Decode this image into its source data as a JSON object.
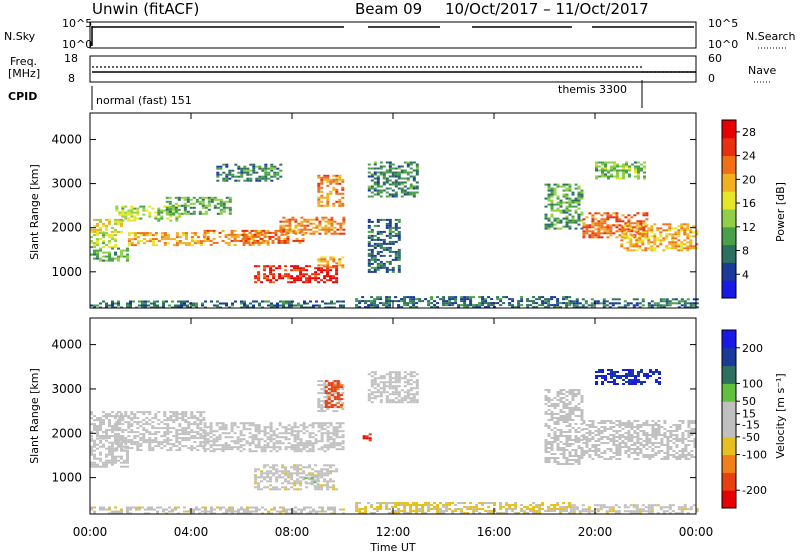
{
  "header": {
    "station": "Unwin  (fitACF)",
    "beam": "Beam 09",
    "date_range": "10/Oct/2017 – 11/Oct/2017"
  },
  "nsky_panel": {
    "left_label": "N.Sky",
    "right_label": "N.Search",
    "left_ticks": [
      "10^5",
      "10^0"
    ],
    "right_ticks": [
      "10^5",
      "10^0"
    ]
  },
  "freq_panel": {
    "left_label_line1": "Freq.",
    "left_label_line2": "[MHz]",
    "right_label": "Nave",
    "left_ticks": [
      "18",
      "8"
    ],
    "right_ticks": [
      "60",
      "0"
    ]
  },
  "cpid_panel": {
    "label": "CPID",
    "modes": [
      {
        "name": "normal (fast) 151",
        "start_hour": 0,
        "end_hour": 22.0
      },
      {
        "name": "themis 3300",
        "start_hour": 22.0,
        "end_hour": 24
      }
    ]
  },
  "colors": {
    "power_scale": [
      "#1a1ae6",
      "#1a3a99",
      "#2e7060",
      "#4aa04a",
      "#90d048",
      "#e6e628",
      "#f0b020",
      "#f07018",
      "#e83010",
      "#e60000"
    ],
    "velocity_scale": [
      "#1a1ae6",
      "#1a3a99",
      "#2e7060",
      "#60c040",
      "#c0c0c0",
      "#c0c0c0",
      "#e6c020",
      "#f08018",
      "#e84010",
      "#e60000"
    ],
    "ground_scatter": "#c0c0c0"
  },
  "chart_data": [
    {
      "type": "heatmap",
      "name": "power",
      "ylabel": "Slant Range [km]",
      "xlabel": "",
      "x_ticks": [
        "00:00",
        "04:00",
        "08:00",
        "12:00",
        "16:00",
        "20:00",
        "00:00"
      ],
      "xlim_hours": [
        0,
        24
      ],
      "y_ticks": [
        1000,
        2000,
        3000,
        4000
      ],
      "ylim": [
        180,
        4600
      ],
      "colorbar_label": "Power [dB]",
      "colorbar_ticks": [
        4,
        8,
        12,
        16,
        20,
        24,
        28
      ],
      "colorbar_range": [
        0,
        30
      ],
      "regions": [
        {
          "t": [
            0.0,
            1.2
          ],
          "r": [
            1900,
            2200
          ],
          "level": 18
        },
        {
          "t": [
            0.0,
            1.0
          ],
          "r": [
            1550,
            1900
          ],
          "level": 14
        },
        {
          "t": [
            0.0,
            1.5
          ],
          "r": [
            1250,
            1550
          ],
          "level": 10
        },
        {
          "t": [
            1.0,
            3.5
          ],
          "r": [
            2150,
            2500
          ],
          "level": 14
        },
        {
          "t": [
            1.5,
            4.5
          ],
          "r": [
            1600,
            1900
          ],
          "level": 20
        },
        {
          "t": [
            3.0,
            5.5
          ],
          "r": [
            2300,
            2700
          ],
          "level": 10
        },
        {
          "t": [
            4.5,
            7.0
          ],
          "r": [
            1600,
            1950
          ],
          "level": 22
        },
        {
          "t": [
            6.0,
            8.5
          ],
          "r": [
            1650,
            1950
          ],
          "level": 24
        },
        {
          "t": [
            7.5,
            10.0
          ],
          "r": [
            1850,
            2250
          ],
          "level": 22
        },
        {
          "t": [
            9.0,
            10.0
          ],
          "r": [
            2500,
            3200
          ],
          "level": 22
        },
        {
          "t": [
            6.5,
            9.8
          ],
          "r": [
            750,
            1150
          ],
          "level": 28
        },
        {
          "t": [
            9.0,
            10.0
          ],
          "r": [
            1100,
            1350
          ],
          "level": 20
        },
        {
          "t": [
            5.0,
            7.5
          ],
          "r": [
            3050,
            3450
          ],
          "level": 8
        },
        {
          "t": [
            11.0,
            13.0
          ],
          "r": [
            2700,
            3500
          ],
          "level": 8
        },
        {
          "t": [
            11.0,
            12.2
          ],
          "r": [
            1000,
            2200
          ],
          "level": 6
        },
        {
          "t": [
            18.0,
            19.5
          ],
          "r": [
            2000,
            3000
          ],
          "level": 10
        },
        {
          "t": [
            19.5,
            22.0
          ],
          "r": [
            1800,
            2350
          ],
          "level": 24
        },
        {
          "t": [
            21.0,
            24.0
          ],
          "r": [
            1500,
            2100
          ],
          "level": 20
        },
        {
          "t": [
            20.0,
            22.0
          ],
          "r": [
            3100,
            3500
          ],
          "level": 12
        },
        {
          "t": [
            10.5,
            19.0
          ],
          "r": [
            200,
            450
          ],
          "level": 6
        },
        {
          "t": [
            0.0,
            10.0
          ],
          "r": [
            200,
            350
          ],
          "level": 6
        },
        {
          "t": [
            19.0,
            24.0
          ],
          "r": [
            200,
            400
          ],
          "level": 6
        }
      ]
    },
    {
      "type": "heatmap",
      "name": "velocity",
      "ylabel": "Slant Range [km]",
      "xlabel": "Time UT",
      "x_ticks": [
        "00:00",
        "04:00",
        "08:00",
        "12:00",
        "16:00",
        "20:00",
        "00:00"
      ],
      "xlim_hours": [
        0,
        24
      ],
      "y_ticks": [
        1000,
        2000,
        3000,
        4000
      ],
      "ylim": [
        180,
        4600
      ],
      "colorbar_label": "Velocity [m s⁻¹]",
      "colorbar_ticks": [
        200,
        100,
        50,
        15,
        -15,
        -50,
        -100,
        -200
      ],
      "colorbar_range": [
        -250,
        250
      ],
      "regions": [
        {
          "t": [
            0.0,
            1.2
          ],
          "r": [
            1900,
            2500
          ],
          "v": 0
        },
        {
          "t": [
            0.0,
            1.5
          ],
          "r": [
            1250,
            1900
          ],
          "v": 0
        },
        {
          "t": [
            1.0,
            4.5
          ],
          "r": [
            1600,
            2500
          ],
          "v": 0
        },
        {
          "t": [
            4.5,
            10.0
          ],
          "r": [
            1600,
            2250
          ],
          "v": 0
        },
        {
          "t": [
            6.5,
            9.8
          ],
          "r": [
            750,
            1300
          ],
          "v": -40
        },
        {
          "t": [
            8.5,
            9.0
          ],
          "r": [
            800,
            1100
          ],
          "v": 40
        },
        {
          "t": [
            9.0,
            10.0
          ],
          "r": [
            2500,
            3200
          ],
          "v": 0
        },
        {
          "t": [
            9.3,
            10.0
          ],
          "r": [
            2600,
            3200
          ],
          "v": -180
        },
        {
          "t": [
            10.8,
            11.1
          ],
          "r": [
            1800,
            2000
          ],
          "v": -220
        },
        {
          "t": [
            11.0,
            13.0
          ],
          "r": [
            2700,
            3400
          ],
          "v": 0
        },
        {
          "t": [
            18.0,
            19.5
          ],
          "r": [
            1300,
            3000
          ],
          "v": 0
        },
        {
          "t": [
            19.5,
            24.0
          ],
          "r": [
            1400,
            2300
          ],
          "v": 0
        },
        {
          "t": [
            20.0,
            22.5
          ],
          "r": [
            3100,
            3450
          ],
          "v": 220
        },
        {
          "t": [
            10.5,
            19.0
          ],
          "r": [
            200,
            450
          ],
          "v": -60
        },
        {
          "t": [
            0.0,
            10.0
          ],
          "r": [
            200,
            350
          ],
          "v": -40
        },
        {
          "t": [
            19.0,
            24.0
          ],
          "r": [
            200,
            400
          ],
          "v": -40
        }
      ]
    }
  ]
}
